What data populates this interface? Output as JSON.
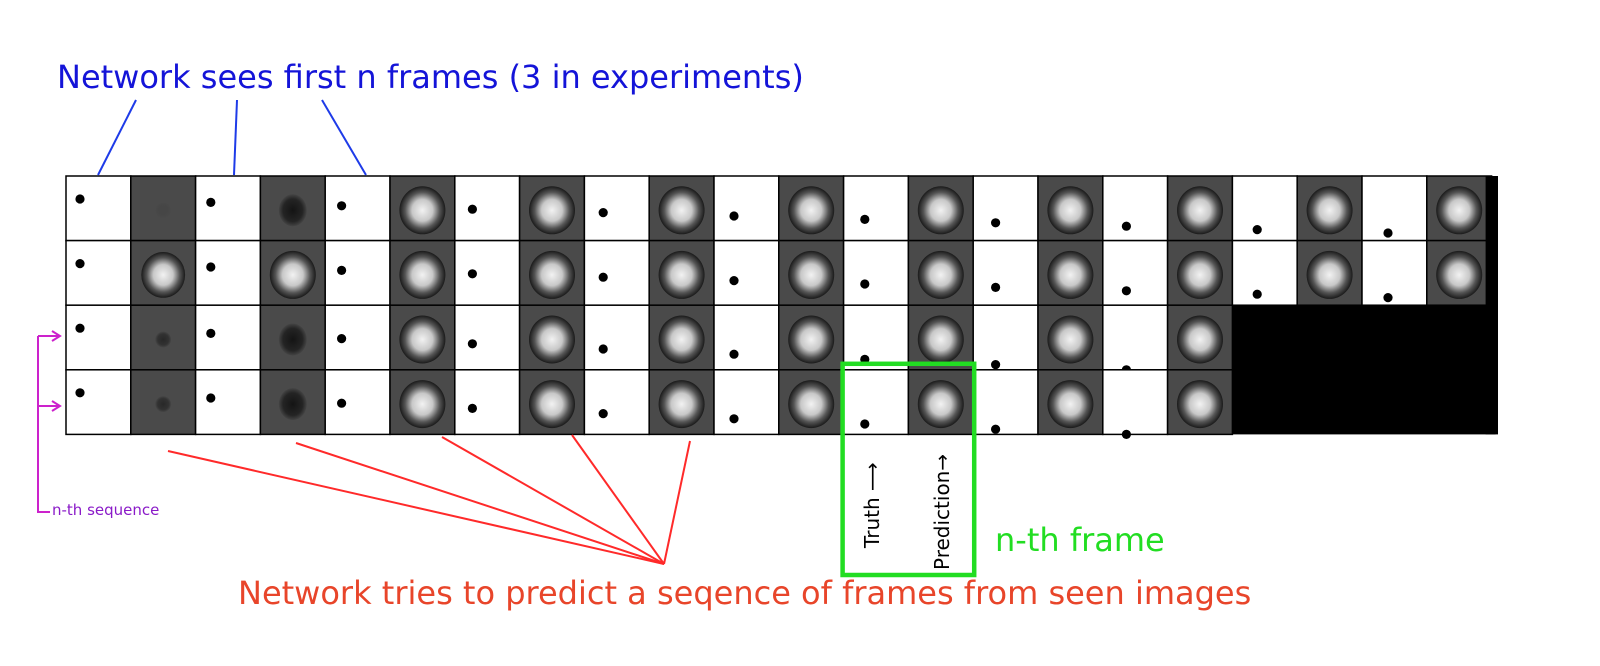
{
  "labels": {
    "top_caption": "Network sees first n frames (3 in experiments)",
    "bottom_caption": "Network tries to predict a seqence of frames from seen images",
    "nth_frame": "n-th frame",
    "nth_sequence": "n-th sequence",
    "truth": "Truth",
    "prediction": "Prediction"
  },
  "grid": {
    "rows": 4,
    "pairs_per_row": [
      11,
      11,
      9,
      9
    ],
    "highlighted_row": 4,
    "highlighted_pair": 7
  },
  "colors": {
    "seen_annotation": "#1e3be8",
    "predict_annotation": "#ff2a2a",
    "highlight_box": "#22dd22",
    "sequence_marker": "#cc22cc",
    "truth_background": "#ffffff",
    "prediction_background": "#4a4a4a",
    "empty_background": "#000000"
  }
}
